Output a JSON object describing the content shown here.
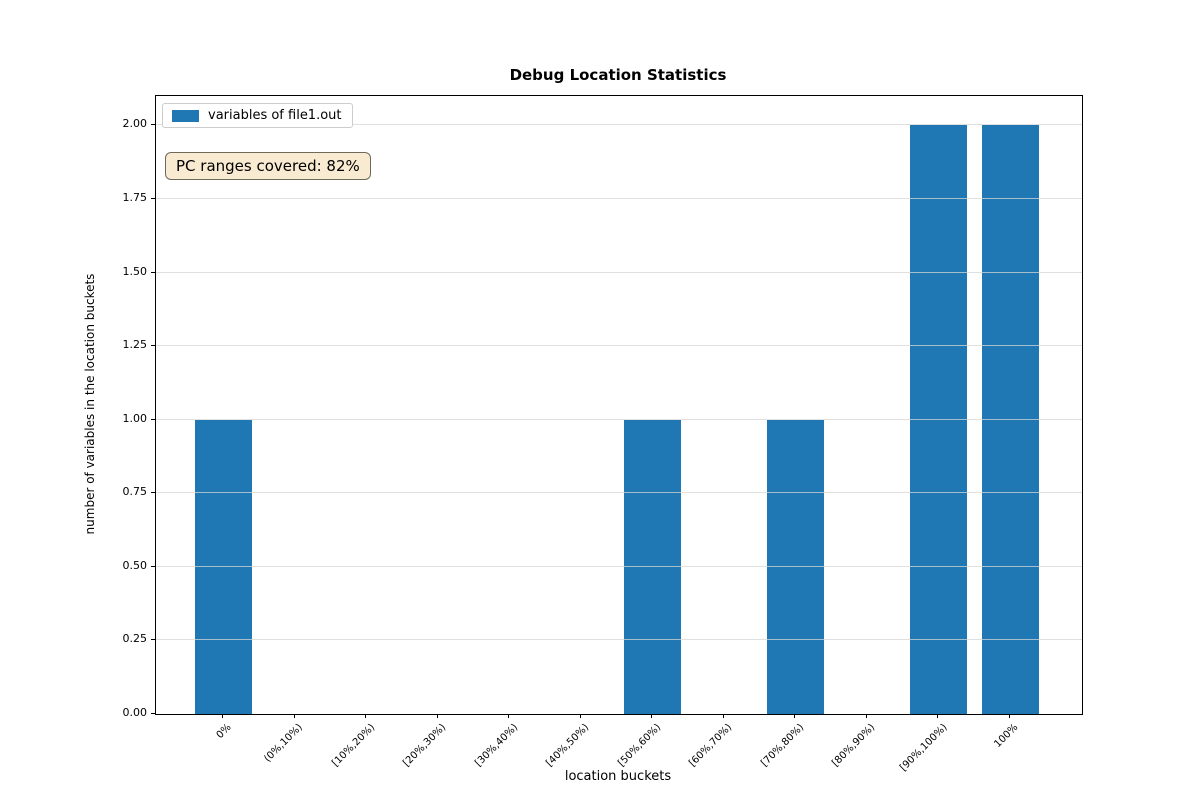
{
  "chart_data": {
    "type": "bar",
    "title": "Debug Location Statistics",
    "xlabel": "location buckets",
    "ylabel": "number of variables in the location buckets",
    "categories": [
      "0%",
      "(0%,10%)",
      "[10%,20%)",
      "[20%,30%)",
      "[30%,40%)",
      "[40%,50%)",
      "[50%,60%)",
      "[60%,70%)",
      "[70%,80%)",
      "[80%,90%)",
      "[90%,100%)",
      "100%"
    ],
    "series": [
      {
        "name": "variables of file1.out",
        "values": [
          1,
          0,
          0,
          0,
          0,
          0,
          1,
          0,
          1,
          0,
          2,
          2
        ]
      }
    ],
    "y_ticks": [
      "0.00",
      "0.25",
      "0.50",
      "0.75",
      "1.00",
      "1.25",
      "1.50",
      "1.75",
      "2.00"
    ],
    "ylim": [
      0,
      2.1
    ],
    "grid": "horizontal",
    "legend_position": "upper-left",
    "bar_color": "#1f77b4",
    "annotation": {
      "text": "PC ranges covered: 82%",
      "background": "#f8eed9",
      "border": "#6f6a5b"
    }
  }
}
